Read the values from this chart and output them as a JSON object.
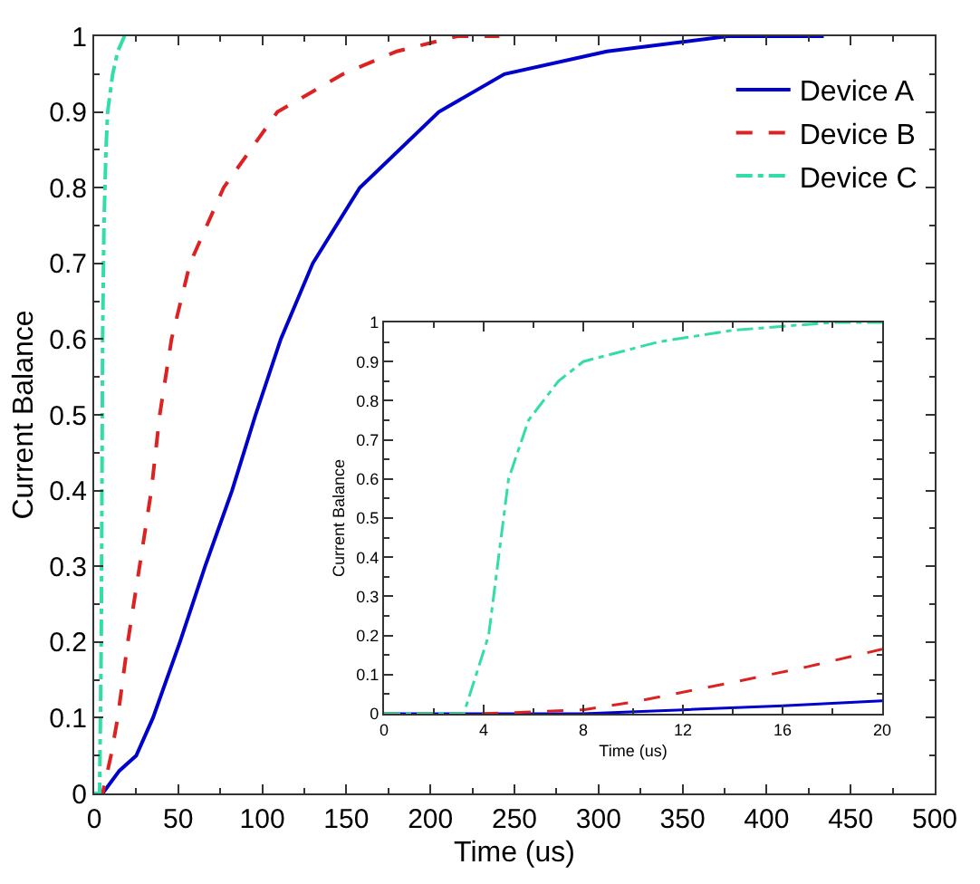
{
  "chart_data": [
    {
      "type": "line",
      "xlabel": "Time (us)",
      "ylabel": "Current Balance",
      "xlim": [
        0,
        500
      ],
      "xticks": [
        0,
        50,
        100,
        150,
        200,
        250,
        300,
        350,
        400,
        450,
        500
      ],
      "ylim": [
        0,
        1
      ],
      "yticks": [
        0,
        0.1,
        0.2,
        0.3,
        0.4,
        0.5,
        0.6,
        0.7,
        0.8,
        0.9,
        1
      ],
      "grid": false,
      "legend": "top right",
      "marker": "none",
      "series": [
        {
          "name": "Device A",
          "color": "#0000cc",
          "line_style": "solid",
          "x": [
            0,
            5,
            15,
            25,
            35,
            51,
            66,
            82,
            96,
            111,
            130,
            158,
            205,
            244,
            305,
            377,
            434
          ],
          "values": [
            0,
            0,
            0.03,
            0.05,
            0.1,
            0.2,
            0.3,
            0.4,
            0.5,
            0.6,
            0.7,
            0.8,
            0.9,
            0.95,
            0.98,
            1,
            1
          ]
        },
        {
          "name": "Device B",
          "color": "#dd2222",
          "line_style": "dashed",
          "x": [
            0,
            5,
            10,
            14,
            20,
            27,
            34,
            39,
            46,
            57,
            77,
            109,
            148,
            180,
            216,
            241
          ],
          "values": [
            0,
            0,
            0.05,
            0.1,
            0.2,
            0.3,
            0.4,
            0.5,
            0.6,
            0.7,
            0.8,
            0.9,
            0.95,
            0.98,
            1,
            1
          ]
        },
        {
          "name": "Device C",
          "color": "#33ddaa",
          "line_style": "dashdot",
          "x": [
            0,
            3.2,
            4.2,
            5,
            5.8,
            7,
            8,
            11,
            14,
            18,
            20
          ],
          "values": [
            0,
            0,
            0.2,
            0.6,
            0.75,
            0.85,
            0.9,
            0.95,
            0.98,
            1,
            1
          ]
        }
      ]
    },
    {
      "type": "line",
      "xlabel": "Time (us)",
      "ylabel": "Current Balance",
      "xlim": [
        0,
        20
      ],
      "xticks": [
        0,
        4,
        8,
        12,
        16,
        20
      ],
      "ylim": [
        0,
        1
      ],
      "yticks": [
        0,
        0.1,
        0.2,
        0.3,
        0.4,
        0.5,
        0.6,
        0.7,
        0.8,
        0.9,
        1
      ],
      "grid": false,
      "legend": false,
      "marker": "none",
      "series": [
        {
          "color": "#0000cc",
          "line_style": "solid",
          "x": [
            0,
            8,
            12,
            16,
            20
          ],
          "values": [
            0,
            0,
            0.01,
            0.02,
            0.033
          ]
        },
        {
          "color": "#dd2222",
          "line_style": "dashed",
          "x": [
            0,
            4,
            8,
            10,
            14,
            17,
            20
          ],
          "values": [
            0,
            0,
            0.01,
            0.03,
            0.08,
            0.12,
            0.165
          ]
        },
        {
          "color": "#33ddaa",
          "line_style": "dashdot",
          "x": [
            0,
            3.2,
            4.2,
            5,
            5.8,
            7,
            8,
            11,
            14,
            18,
            20
          ],
          "values": [
            0,
            0,
            0.2,
            0.6,
            0.75,
            0.85,
            0.9,
            0.95,
            0.98,
            1,
            1
          ]
        }
      ]
    }
  ]
}
